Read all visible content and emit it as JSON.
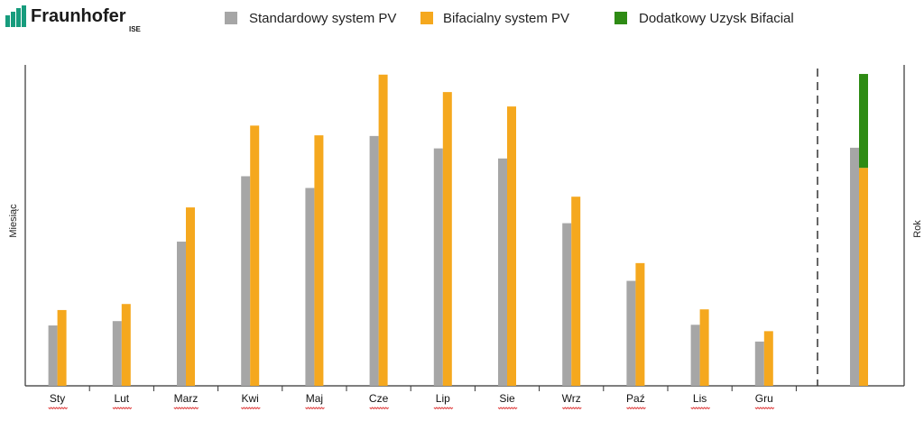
{
  "logo": {
    "name": "Fraunhofer",
    "sub": "ISE"
  },
  "colors": {
    "standard": "#a6a6a6",
    "bifacial": "#f5a81e",
    "extra": "#2e8b14",
    "logo_green": "#179c7d"
  },
  "chart_data": {
    "type": "bar",
    "categories": [
      "Sty",
      "Lut",
      "Marz",
      "Kwi",
      "Maj",
      "Cze",
      "Lip",
      "Sie",
      "Wrz",
      "Paź",
      "Lis",
      "Gru"
    ],
    "series": [
      {
        "name": "Standardowy system PV",
        "values": [
          18,
          19.3,
          43,
          62.5,
          59,
          74.5,
          70.8,
          67.8,
          48.5,
          31.3,
          18.2,
          13.2
        ]
      },
      {
        "name": "Bifacialny system PV",
        "values": [
          22.6,
          24.4,
          53.2,
          77.6,
          74.7,
          92.8,
          87.6,
          83.3,
          56.4,
          36.6,
          22.8,
          16.3
        ]
      }
    ],
    "annual": {
      "label": "Rok",
      "standard": 71,
      "bifacial": 65,
      "extra": 28,
      "extra_name": "Dodatkowy Uzysk Bifacial"
    },
    "xlabel": "",
    "ylabel_left": "Miesiąc",
    "ylabel_right": "Rok",
    "ylim": [
      0,
      100
    ],
    "grid": false,
    "legend": "top-center"
  }
}
